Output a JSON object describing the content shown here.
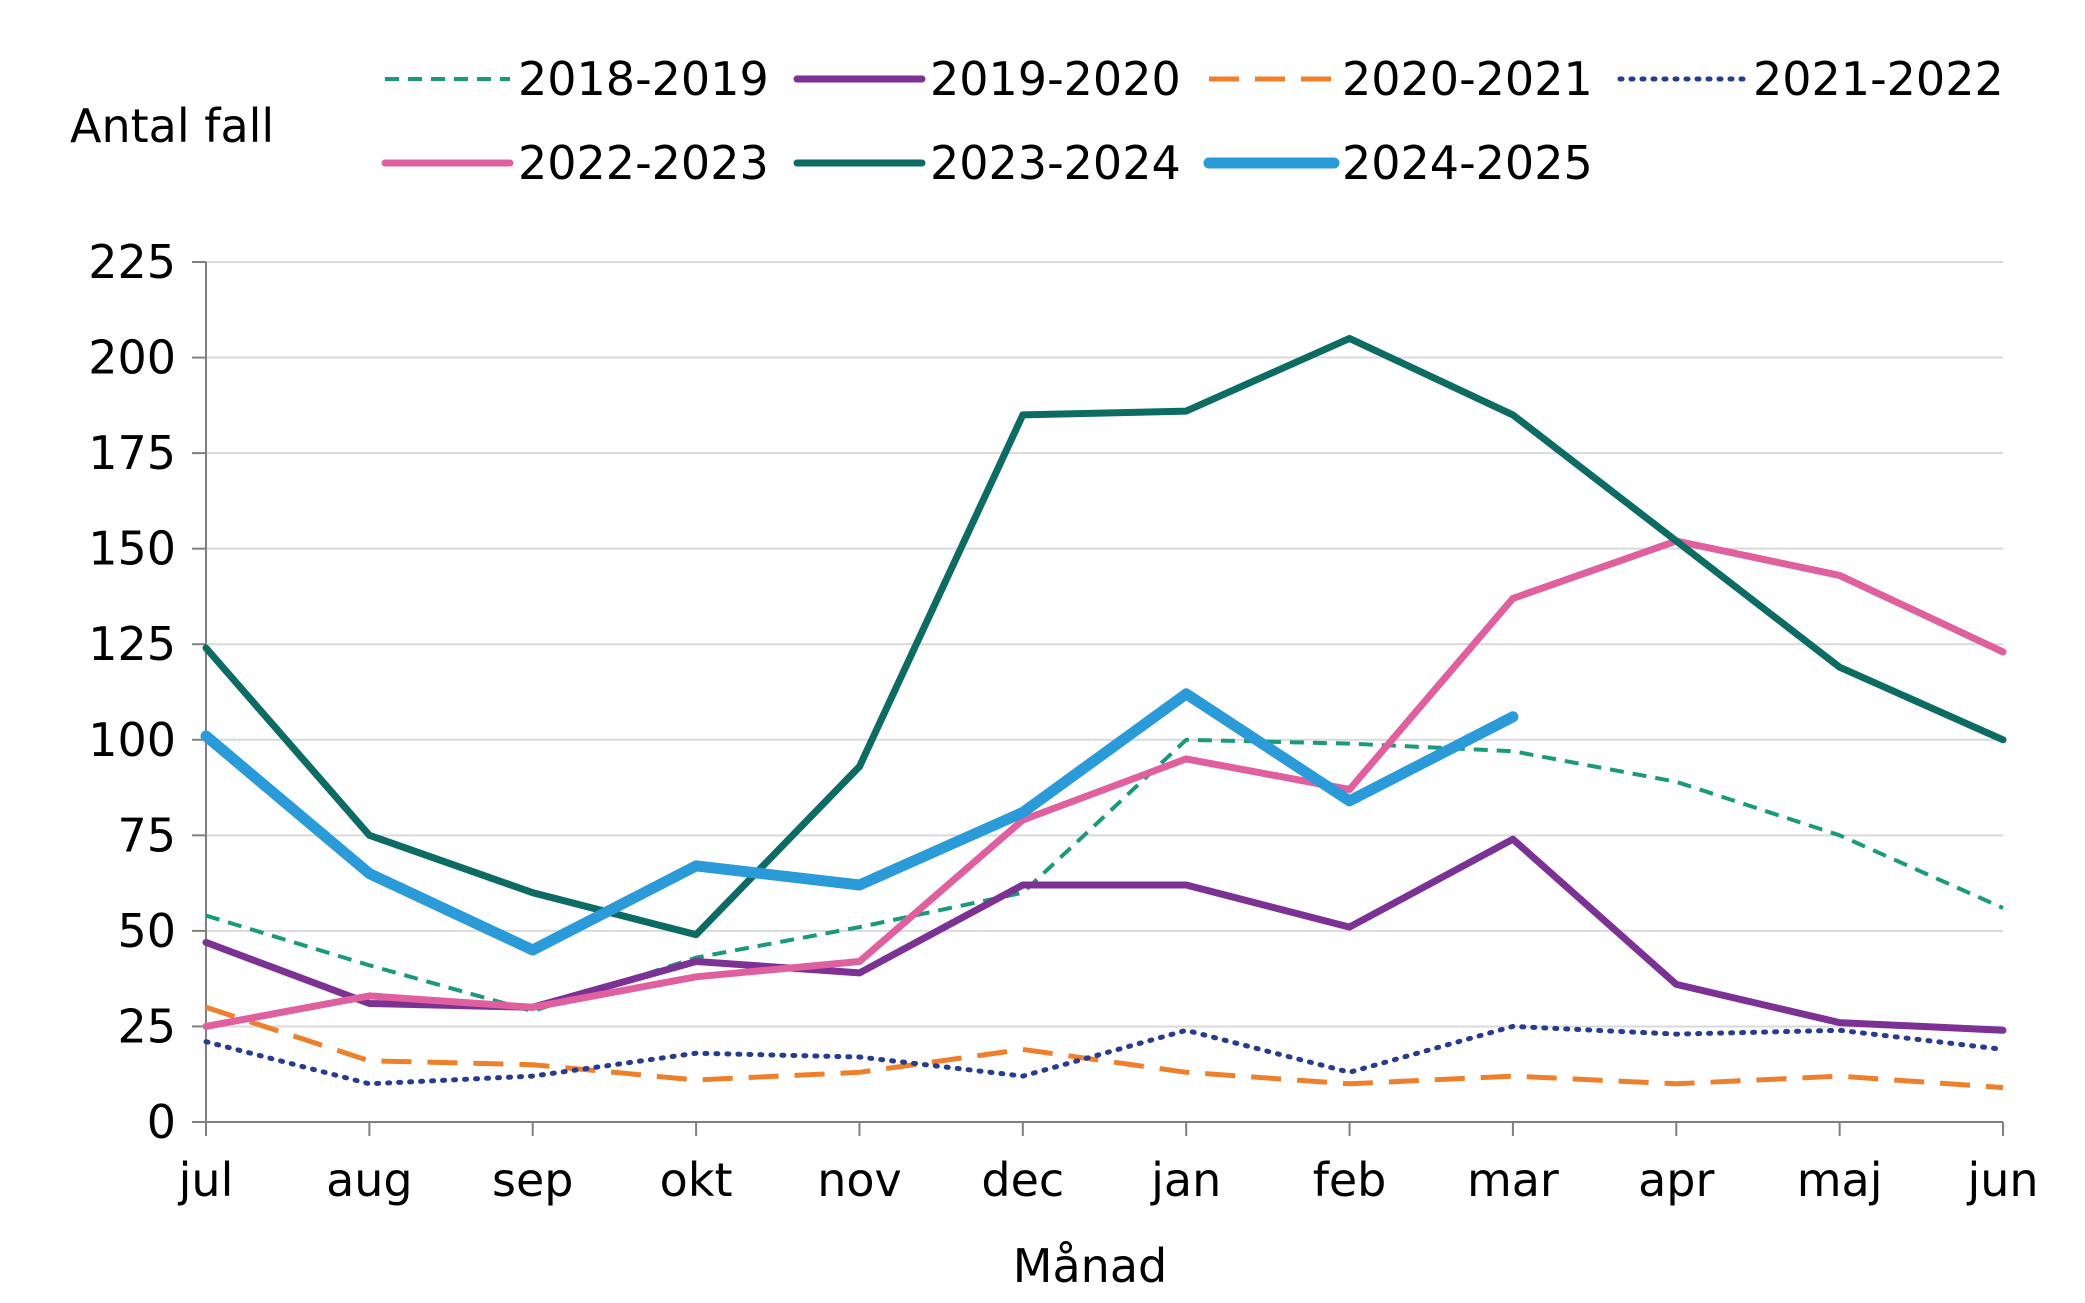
{
  "chart_data": {
    "type": "line",
    "ylabel": "Antal fall",
    "xlabel": "Månad",
    "ylim": [
      0,
      225
    ],
    "yticks": [
      0,
      25,
      50,
      75,
      100,
      125,
      150,
      175,
      200,
      225
    ],
    "grid": "horizontal",
    "legend": "top",
    "categories": [
      "jul",
      "aug",
      "sep",
      "okt",
      "nov",
      "dec",
      "jan",
      "feb",
      "mar",
      "apr",
      "maj",
      "jun"
    ],
    "series": [
      {
        "name": "2018-2019",
        "color": "#1a9a7a",
        "style": "dashed",
        "values": [
          54,
          41,
          29,
          43,
          51,
          60,
          100,
          99,
          97,
          89,
          75,
          56
        ]
      },
      {
        "name": "2019-2020",
        "color": "#7b3294",
        "style": "solid",
        "values": [
          47,
          31,
          30,
          42,
          39,
          62,
          62,
          51,
          74,
          36,
          26,
          24
        ]
      },
      {
        "name": "2020-2021",
        "color": "#f07f2b",
        "style": "longdash",
        "values": [
          30,
          16,
          15,
          11,
          13,
          19,
          13,
          10,
          12,
          10,
          12,
          9
        ]
      },
      {
        "name": "2021-2022",
        "color": "#283c8f",
        "style": "dotted",
        "values": [
          21,
          10,
          12,
          18,
          17,
          12,
          24,
          13,
          25,
          23,
          24,
          19
        ]
      },
      {
        "name": "2022-2023",
        "color": "#e0609f",
        "style": "solid",
        "values": [
          25,
          33,
          30,
          38,
          42,
          79,
          95,
          87,
          137,
          152,
          143,
          123
        ]
      },
      {
        "name": "2023-2024",
        "color": "#0c6b63",
        "style": "solid",
        "values": [
          124,
          75,
          60,
          49,
          93,
          185,
          186,
          205,
          185,
          152,
          119,
          100
        ]
      },
      {
        "name": "2024-2025",
        "color": "#2a9bd8",
        "style": "thick",
        "values": [
          101,
          65,
          45,
          67,
          62,
          81,
          112,
          84,
          106,
          null,
          null,
          null
        ]
      }
    ]
  }
}
